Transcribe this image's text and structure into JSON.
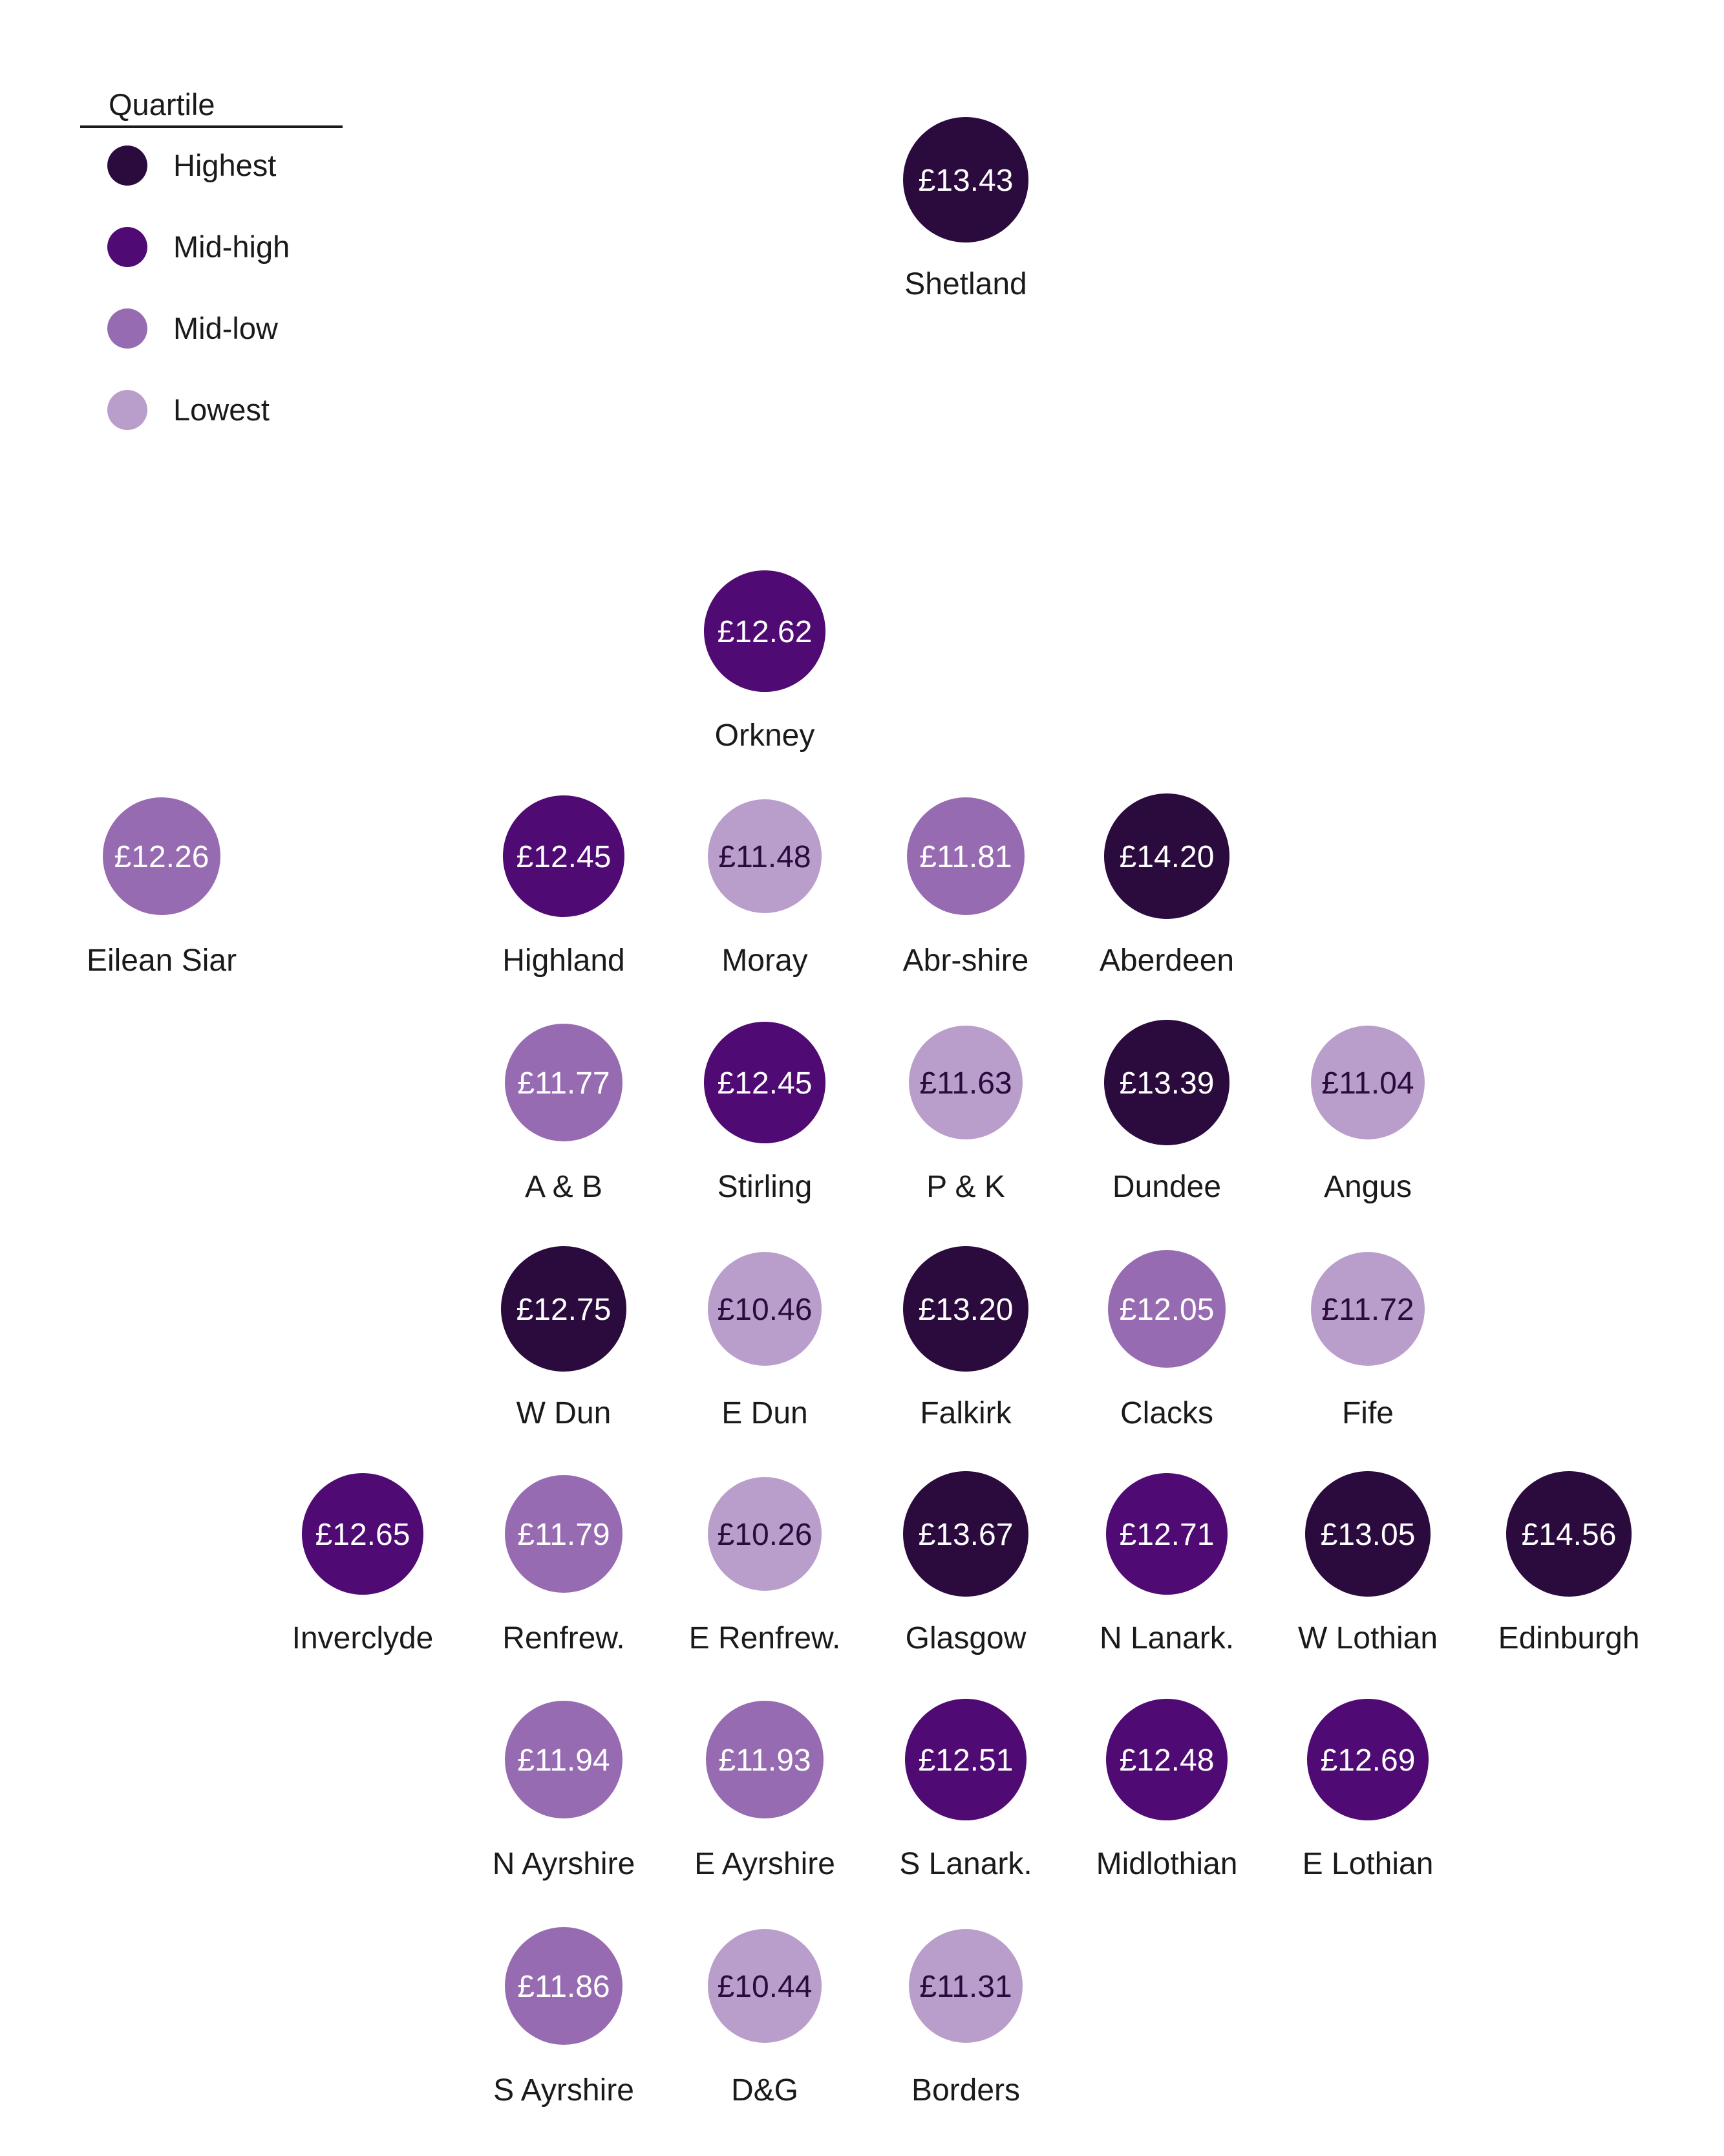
{
  "legend": {
    "title": "Quartile",
    "items": [
      {
        "key": "highest",
        "label": "Highest",
        "color": "#2b0a3d"
      },
      {
        "key": "midhigh",
        "label": "Mid-high",
        "color": "#4f0a73"
      },
      {
        "key": "midlow",
        "label": "Mid-low",
        "color": "#976bb1"
      },
      {
        "key": "lowest",
        "label": "Lowest",
        "color": "#b99dcb"
      }
    ]
  },
  "label_colors": {
    "on_dark": "#ffffff",
    "on_light": "#2b0a3d",
    "place_name": "#1a1a1a"
  },
  "chart_data": {
    "type": "tile-grid",
    "tiles": [
      {
        "name": "Shetland",
        "value": "£13.43",
        "quartile": "highest",
        "col": 4,
        "row": 0
      },
      {
        "name": "Orkney",
        "value": "£12.62",
        "quartile": "midhigh",
        "col": 3,
        "row": 2
      },
      {
        "name": "Eilean Siar",
        "value": "£12.26",
        "quartile": "midlow",
        "col": 0,
        "row": 3
      },
      {
        "name": "Highland",
        "value": "£12.45",
        "quartile": "midhigh",
        "col": 2,
        "row": 3
      },
      {
        "name": "Moray",
        "value": "£11.48",
        "quartile": "lowest",
        "col": 3,
        "row": 3
      },
      {
        "name": "Abr-shire",
        "value": "£11.81",
        "quartile": "midlow",
        "col": 4,
        "row": 3
      },
      {
        "name": "Aberdeen",
        "value": "£14.20",
        "quartile": "highest",
        "col": 5,
        "row": 3
      },
      {
        "name": "A & B",
        "value": "£11.77",
        "quartile": "midlow",
        "col": 2,
        "row": 4
      },
      {
        "name": "Stirling",
        "value": "£12.45",
        "quartile": "midhigh",
        "col": 3,
        "row": 4
      },
      {
        "name": "P & K",
        "value": "£11.63",
        "quartile": "lowest",
        "col": 4,
        "row": 4
      },
      {
        "name": "Dundee",
        "value": "£13.39",
        "quartile": "highest",
        "col": 5,
        "row": 4
      },
      {
        "name": "Angus",
        "value": "£11.04",
        "quartile": "lowest",
        "col": 6,
        "row": 4
      },
      {
        "name": "W Dun",
        "value": "£12.75",
        "quartile": "highest",
        "col": 2,
        "row": 5
      },
      {
        "name": "E Dun",
        "value": "£10.46",
        "quartile": "lowest",
        "col": 3,
        "row": 5
      },
      {
        "name": "Falkirk",
        "value": "£13.20",
        "quartile": "highest",
        "col": 4,
        "row": 5
      },
      {
        "name": "Clacks",
        "value": "£12.05",
        "quartile": "midlow",
        "col": 5,
        "row": 5
      },
      {
        "name": "Fife",
        "value": "£11.72",
        "quartile": "lowest",
        "col": 6,
        "row": 5
      },
      {
        "name": "Inverclyde",
        "value": "£12.65",
        "quartile": "midhigh",
        "col": 1,
        "row": 6
      },
      {
        "name": "Renfrew.",
        "value": "£11.79",
        "quartile": "midlow",
        "col": 2,
        "row": 6
      },
      {
        "name": "E Renfrew.",
        "value": "£10.26",
        "quartile": "lowest",
        "col": 3,
        "row": 6
      },
      {
        "name": "Glasgow",
        "value": "£13.67",
        "quartile": "highest",
        "col": 4,
        "row": 6
      },
      {
        "name": "N Lanark.",
        "value": "£12.71",
        "quartile": "midhigh",
        "col": 5,
        "row": 6
      },
      {
        "name": "W Lothian",
        "value": "£13.05",
        "quartile": "highest",
        "col": 6,
        "row": 6
      },
      {
        "name": "Edinburgh",
        "value": "£14.56",
        "quartile": "highest",
        "col": 7,
        "row": 6
      },
      {
        "name": "N Ayrshire",
        "value": "£11.94",
        "quartile": "midlow",
        "col": 2,
        "row": 7
      },
      {
        "name": "E Ayrshire",
        "value": "£11.93",
        "quartile": "midlow",
        "col": 3,
        "row": 7
      },
      {
        "name": "S Lanark.",
        "value": "£12.51",
        "quartile": "midhigh",
        "col": 4,
        "row": 7
      },
      {
        "name": "Midlothian",
        "value": "£12.48",
        "quartile": "midhigh",
        "col": 5,
        "row": 7
      },
      {
        "name": "E Lothian",
        "value": "£12.69",
        "quartile": "midhigh",
        "col": 6,
        "row": 7
      },
      {
        "name": "S Ayrshire",
        "value": "£11.86",
        "quartile": "midlow",
        "col": 2,
        "row": 8
      },
      {
        "name": "D&G",
        "value": "£10.44",
        "quartile": "lowest",
        "col": 3,
        "row": 8
      },
      {
        "name": "Borders",
        "value": "£11.31",
        "quartile": "lowest",
        "col": 4,
        "row": 8
      }
    ]
  }
}
